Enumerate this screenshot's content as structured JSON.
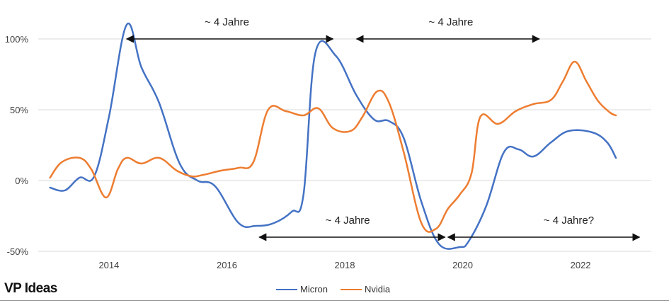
{
  "brand": "VP Ideas",
  "colors": {
    "micron": "#4472c4",
    "nvidia": "#ed7d31",
    "grid": "#d9d9d9",
    "arrow": "#111111"
  },
  "chart_data": {
    "type": "line",
    "title": "",
    "xlabel": "",
    "ylabel": "",
    "xlim": [
      2012.8,
      2023.2
    ],
    "ylim": [
      -50,
      100
    ],
    "y_ticks": [
      {
        "value": 100,
        "label": "100%"
      },
      {
        "value": 50,
        "label": "50%"
      },
      {
        "value": 0,
        "label": "0%"
      },
      {
        "value": -50,
        "label": "-50%"
      }
    ],
    "x_ticks": [
      {
        "value": 2014,
        "label": "2014"
      },
      {
        "value": 2016,
        "label": "2016"
      },
      {
        "value": 2018,
        "label": "2018"
      },
      {
        "value": 2020,
        "label": "2020"
      },
      {
        "value": 2022,
        "label": "2022"
      }
    ],
    "grid": true,
    "legend_position": "bottom",
    "series": [
      {
        "name": "Micron",
        "color": "#4472c4",
        "points": [
          [
            2013.0,
            -5
          ],
          [
            2013.25,
            -7
          ],
          [
            2013.5,
            2
          ],
          [
            2013.75,
            3
          ],
          [
            2014.0,
            45
          ],
          [
            2014.3,
            110
          ],
          [
            2014.55,
            80
          ],
          [
            2014.85,
            55
          ],
          [
            2015.2,
            12
          ],
          [
            2015.5,
            0
          ],
          [
            2015.8,
            -4
          ],
          [
            2016.2,
            -30
          ],
          [
            2016.5,
            -32
          ],
          [
            2016.8,
            -30
          ],
          [
            2017.1,
            -22
          ],
          [
            2017.3,
            -10
          ],
          [
            2017.5,
            90
          ],
          [
            2017.85,
            88
          ],
          [
            2018.2,
            60
          ],
          [
            2018.5,
            43
          ],
          [
            2018.75,
            42
          ],
          [
            2019.0,
            30
          ],
          [
            2019.3,
            -15
          ],
          [
            2019.6,
            -45
          ],
          [
            2019.95,
            -47
          ],
          [
            2020.1,
            -43
          ],
          [
            2020.4,
            -18
          ],
          [
            2020.7,
            20
          ],
          [
            2020.95,
            22
          ],
          [
            2021.2,
            17
          ],
          [
            2021.5,
            27
          ],
          [
            2021.8,
            35
          ],
          [
            2022.2,
            34
          ],
          [
            2022.45,
            27
          ],
          [
            2022.6,
            16
          ]
        ]
      },
      {
        "name": "Nvidia",
        "color": "#ed7d31",
        "points": [
          [
            2013.0,
            2
          ],
          [
            2013.2,
            13
          ],
          [
            2013.5,
            16
          ],
          [
            2013.7,
            8
          ],
          [
            2013.95,
            -12
          ],
          [
            2014.15,
            8
          ],
          [
            2014.3,
            16
          ],
          [
            2014.55,
            12
          ],
          [
            2014.85,
            16
          ],
          [
            2015.15,
            7
          ],
          [
            2015.4,
            3
          ],
          [
            2015.6,
            4
          ],
          [
            2015.9,
            7
          ],
          [
            2016.2,
            9
          ],
          [
            2016.45,
            13
          ],
          [
            2016.7,
            50
          ],
          [
            2017.0,
            49
          ],
          [
            2017.3,
            46
          ],
          [
            2017.55,
            51
          ],
          [
            2017.8,
            37
          ],
          [
            2018.1,
            35
          ],
          [
            2018.3,
            45
          ],
          [
            2018.55,
            63
          ],
          [
            2018.75,
            55
          ],
          [
            2019.0,
            20
          ],
          [
            2019.3,
            -30
          ],
          [
            2019.55,
            -34
          ],
          [
            2019.75,
            -20
          ],
          [
            2019.95,
            -10
          ],
          [
            2020.15,
            5
          ],
          [
            2020.3,
            45
          ],
          [
            2020.6,
            40
          ],
          [
            2020.9,
            49
          ],
          [
            2021.2,
            54
          ],
          [
            2021.5,
            57
          ],
          [
            2021.7,
            70
          ],
          [
            2021.9,
            84
          ],
          [
            2022.1,
            70
          ],
          [
            2022.3,
            56
          ],
          [
            2022.5,
            48
          ],
          [
            2022.6,
            46
          ]
        ]
      }
    ],
    "annotations": [
      {
        "text": "~ 4 Jahre",
        "x_from": 2014.3,
        "x_to": 2017.8,
        "y": 100,
        "label_x": 2016.0,
        "label_y": 112
      },
      {
        "text": "~ 4 Jahre",
        "x_from": 2018.2,
        "x_to": 2021.3,
        "y": 100,
        "label_x": 2019.8,
        "label_y": 112
      },
      {
        "text": "~ 4 Jahre",
        "x_from": 2016.55,
        "x_to": 2019.7,
        "y": -40,
        "label_x": 2018.05,
        "label_y": -28
      },
      {
        "text": "~ 4 Jahre?",
        "x_from": 2019.75,
        "x_to": 2023.0,
        "y": -40,
        "label_x": 2021.8,
        "label_y": -28
      }
    ]
  }
}
